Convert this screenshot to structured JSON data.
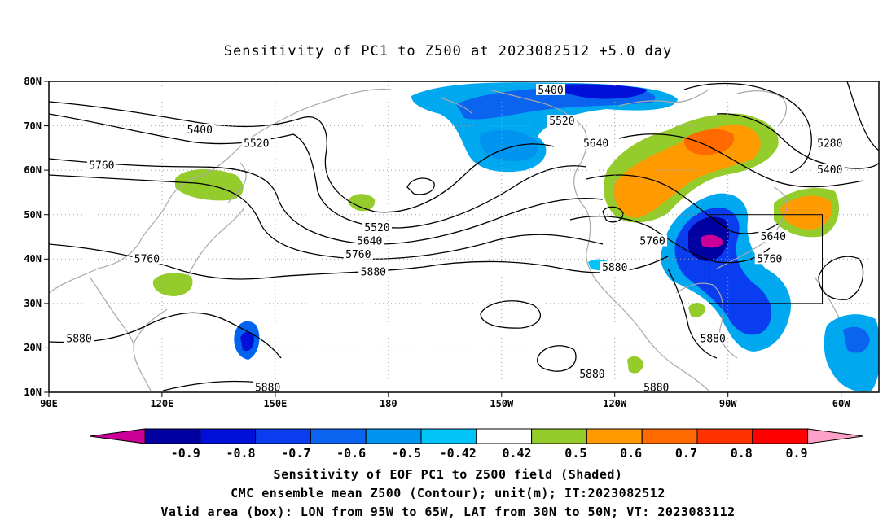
{
  "title": "Sensitivity of PC1 to Z500 at 2023082512 +5.0 day",
  "map": {
    "lon_ticks": [
      "90E",
      "120E",
      "150E",
      "180",
      "150W",
      "120W",
      "90W",
      "60W"
    ],
    "lat_ticks": [
      "80N",
      "70N",
      "60N",
      "50N",
      "40N",
      "30N",
      "20N",
      "10N"
    ],
    "lon_range": [
      90,
      310
    ],
    "lat_range": [
      10,
      80
    ],
    "grid": "dotted",
    "valid_box": {
      "lon": [
        265,
        295
      ],
      "lat": [
        30,
        50
      ]
    }
  },
  "contour_labels": [
    {
      "text": "5400",
      "lon": 130,
      "lat": 69
    },
    {
      "text": "5520",
      "lon": 145,
      "lat": 66
    },
    {
      "text": "5760",
      "lon": 104,
      "lat": 61
    },
    {
      "text": "5760",
      "lon": 116,
      "lat": 40
    },
    {
      "text": "5880",
      "lon": 98,
      "lat": 22
    },
    {
      "text": "5880",
      "lon": 148,
      "lat": 11
    },
    {
      "text": "5520",
      "lon": 177,
      "lat": 47
    },
    {
      "text": "5640",
      "lon": 175,
      "lat": 44
    },
    {
      "text": "5760",
      "lon": 172,
      "lat": 41
    },
    {
      "text": "5880",
      "lon": 176,
      "lat": 37
    },
    {
      "text": "5400",
      "lon": 223,
      "lat": 78
    },
    {
      "text": "5520",
      "lon": 226,
      "lat": 71
    },
    {
      "text": "5640",
      "lon": 235,
      "lat": 66
    },
    {
      "text": "5760",
      "lon": 250,
      "lat": 44
    },
    {
      "text": "5880",
      "lon": 240,
      "lat": 38
    },
    {
      "text": "5280",
      "lon": 297,
      "lat": 66
    },
    {
      "text": "5400",
      "lon": 297,
      "lat": 60
    },
    {
      "text": "5640",
      "lon": 282,
      "lat": 45
    },
    {
      "text": "5760",
      "lon": 281,
      "lat": 40
    },
    {
      "text": "5880",
      "lon": 266,
      "lat": 22
    },
    {
      "text": "5880",
      "lon": 234,
      "lat": 14
    },
    {
      "text": "5880",
      "lon": 251,
      "lat": 11
    }
  ],
  "colorbar": {
    "labels": [
      "-0.9",
      "-0.8",
      "-0.7",
      "-0.6",
      "-0.5",
      "-0.42",
      "0.42",
      "0.5",
      "0.6",
      "0.7",
      "0.8",
      "0.9"
    ],
    "colors": [
      "#0000a0",
      "#0010d8",
      "#0a3cf0",
      "#0a64f0",
      "#0094f0",
      "#00c4f8",
      "#ffffff",
      "#94cc2c",
      "#ff9a00",
      "#ff6a00",
      "#ff3200",
      "#ff0000"
    ],
    "low_end_color": "#cc0099",
    "high_end_color": "#ffa0c8"
  },
  "caption": {
    "line1": "Sensitivity of EOF PC1 to Z500 field (Shaded)",
    "line2": "CMC ensemble mean Z500 (Contour); unit(m); IT:2023082512",
    "line3": "Valid area (box): LON from 95W to 65W, LAT from 30N to 50N; VT: 2023083112"
  }
}
